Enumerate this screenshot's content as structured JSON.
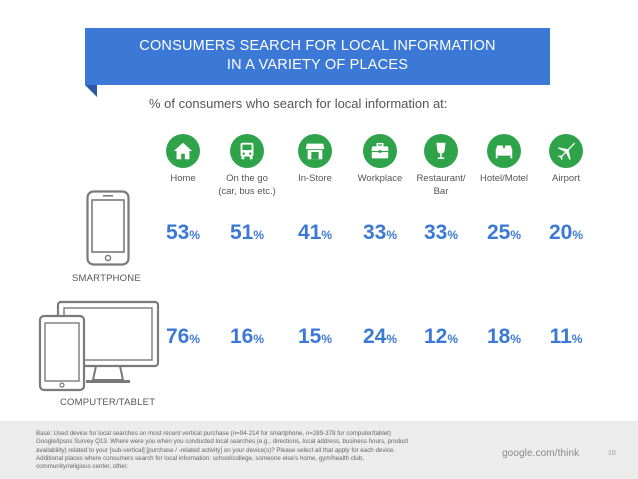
{
  "header": {
    "title_line1": "CONSUMERS SEARCH FOR LOCAL INFORMATION",
    "title_line2": "IN A VARIETY OF PLACES",
    "subtitle": "% of consumers who search for local information at:"
  },
  "colors": {
    "banner": "#3c79d6",
    "icon_green": "#2fa34a",
    "value_blue": "#3c79d6"
  },
  "chart_data": {
    "type": "table",
    "title": "CONSUMERS SEARCH FOR LOCAL INFORMATION IN A VARIETY OF PLACES",
    "subtitle": "% of consumers who search for local information at:",
    "unit": "%",
    "categories": [
      "Home",
      "On the go (car, bus etc.)",
      "In-Store",
      "Workplace",
      "Restaurant/ Bar",
      "Hotel/Motel",
      "Airport"
    ],
    "category_icons": [
      "home-icon",
      "bus-icon",
      "store-icon",
      "briefcase-icon",
      "wine-glass-icon",
      "hotel-bed-icon",
      "airplane-icon"
    ],
    "series": [
      {
        "name": "SMARTPHONE",
        "icon": "smartphone-icon",
        "values": [
          53,
          51,
          41,
          33,
          33,
          25,
          20
        ]
      },
      {
        "name": "COMPUTER/TABLET",
        "icon": "computer-tablet-icon",
        "values": [
          76,
          16,
          15,
          24,
          12,
          18,
          11
        ]
      }
    ]
  },
  "columns": [
    {
      "line1": "Home",
      "line2": ""
    },
    {
      "line1": "On the go",
      "line2": "(car, bus etc.)"
    },
    {
      "line1": "In-Store",
      "line2": ""
    },
    {
      "line1": "Workplace",
      "line2": ""
    },
    {
      "line1": "Restaurant/",
      "line2": "Bar"
    },
    {
      "line1": "Hotel/Motel",
      "line2": ""
    },
    {
      "line1": "Airport",
      "line2": ""
    }
  ],
  "footer": {
    "base_line1": "Base: Used device for local searches on most recent vertical purchase (n=94-214 for smartphone, n=289-378 for computer/tablet)",
    "base_line2": "Google/Ipsos Survey Q13. Where were you when you conducted local searches (e.g., directions, local address, business hours, product",
    "base_line3": "availability) related to your [sub-vertical] [purchase / -related activity] on your device(s)? Please select all that apply for each device.",
    "base_line4": "Additional places where consumers search for local information: school/college, someone else's home, gym/health club,",
    "base_line5": "community/religious center, other.",
    "brand": "google.com/think",
    "page_number": "10"
  }
}
